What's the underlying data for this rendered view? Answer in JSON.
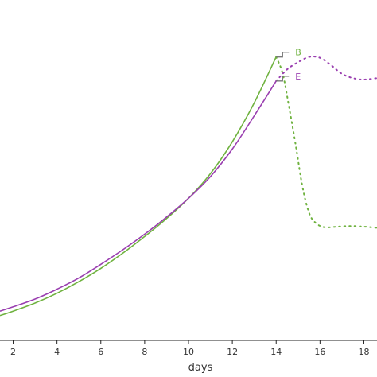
{
  "chart_data": {
    "type": "line",
    "xlabel": "days",
    "xlim": [
      1.4,
      18.6
    ],
    "ylim": [
      0,
      1
    ],
    "x_ticks": [
      2,
      4,
      6,
      8,
      10,
      12,
      14,
      16,
      18
    ],
    "grid": false,
    "colors": {
      "B": "#6fb23f",
      "E": "#9a3fb0",
      "bracket": "#777777",
      "axis": "#222222"
    },
    "series": [
      {
        "name": "B",
        "color": "#6fb23f",
        "solid": [
          {
            "x": 1.4,
            "y": 0.075
          },
          {
            "x": 2,
            "y": 0.09
          },
          {
            "x": 3,
            "y": 0.118
          },
          {
            "x": 4,
            "y": 0.152
          },
          {
            "x": 5,
            "y": 0.192
          },
          {
            "x": 6,
            "y": 0.238
          },
          {
            "x": 7,
            "y": 0.29
          },
          {
            "x": 8,
            "y": 0.348
          },
          {
            "x": 9,
            "y": 0.41
          },
          {
            "x": 10,
            "y": 0.48
          },
          {
            "x": 11,
            "y": 0.565
          },
          {
            "x": 12,
            "y": 0.675
          },
          {
            "x": 13,
            "y": 0.81
          },
          {
            "x": 14,
            "y": 0.968
          }
        ],
        "dotted": [
          {
            "x": 14.0,
            "y": 0.968
          },
          {
            "x": 14.3,
            "y": 0.91
          },
          {
            "x": 14.6,
            "y": 0.79
          },
          {
            "x": 14.9,
            "y": 0.66
          },
          {
            "x": 15.2,
            "y": 0.52
          },
          {
            "x": 15.5,
            "y": 0.43
          },
          {
            "x": 15.8,
            "y": 0.395
          },
          {
            "x": 16.2,
            "y": 0.38
          },
          {
            "x": 16.8,
            "y": 0.382
          },
          {
            "x": 17.4,
            "y": 0.384
          },
          {
            "x": 18,
            "y": 0.382
          },
          {
            "x": 18.6,
            "y": 0.378
          }
        ]
      },
      {
        "name": "E",
        "color": "#9a3fb0",
        "solid": [
          {
            "x": 1.4,
            "y": 0.09
          },
          {
            "x": 2,
            "y": 0.105
          },
          {
            "x": 3,
            "y": 0.132
          },
          {
            "x": 4,
            "y": 0.166
          },
          {
            "x": 5,
            "y": 0.205
          },
          {
            "x": 6,
            "y": 0.252
          },
          {
            "x": 7,
            "y": 0.302
          },
          {
            "x": 8,
            "y": 0.356
          },
          {
            "x": 9,
            "y": 0.415
          },
          {
            "x": 10,
            "y": 0.48
          },
          {
            "x": 11,
            "y": 0.555
          },
          {
            "x": 12,
            "y": 0.65
          },
          {
            "x": 13,
            "y": 0.765
          },
          {
            "x": 14,
            "y": 0.885
          }
        ],
        "dotted": [
          {
            "x": 14.0,
            "y": 0.885
          },
          {
            "x": 14.5,
            "y": 0.925
          },
          {
            "x": 15.0,
            "y": 0.95
          },
          {
            "x": 15.5,
            "y": 0.968
          },
          {
            "x": 16.0,
            "y": 0.965
          },
          {
            "x": 16.5,
            "y": 0.94
          },
          {
            "x": 17.0,
            "y": 0.91
          },
          {
            "x": 17.5,
            "y": 0.895
          },
          {
            "x": 18.0,
            "y": 0.89
          },
          {
            "x": 18.6,
            "y": 0.895
          }
        ]
      }
    ]
  }
}
